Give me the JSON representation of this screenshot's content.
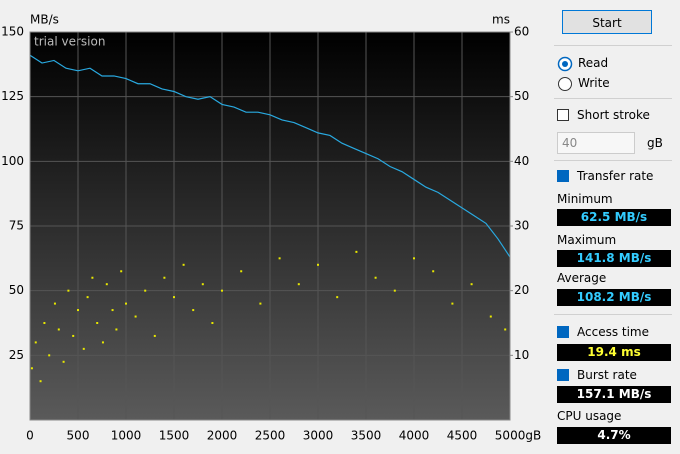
{
  "chart_data": {
    "type": "line",
    "y_unit": "MB/s",
    "y2_unit": "ms",
    "watermark": "trial version",
    "xlim": [
      0,
      5000
    ],
    "xticks": [
      0,
      500,
      1000,
      1500,
      2000,
      2500,
      3000,
      3500,
      4000,
      4500,
      {
        "value": 5000,
        "label": "5000gB"
      }
    ],
    "ylim": [
      0,
      150
    ],
    "yticks": [
      25,
      50,
      75,
      100,
      125,
      150
    ],
    "y2lim": [
      0,
      60
    ],
    "y2ticks": [
      10,
      20,
      30,
      40,
      50,
      60
    ],
    "grid": true,
    "series": [
      {
        "type": "line",
        "color": "#29a9e0",
        "x": [
          0,
          125,
          250,
          375,
          500,
          625,
          750,
          875,
          1000,
          1125,
          1250,
          1375,
          1500,
          1625,
          1750,
          1875,
          2000,
          2125,
          2250,
          2375,
          2500,
          2625,
          2750,
          2875,
          3000,
          3125,
          3250,
          3375,
          3500,
          3625,
          3750,
          3875,
          4000,
          4125,
          4250,
          4375,
          4500,
          4625,
          4750,
          4875,
          5000
        ],
        "values": [
          141,
          138,
          139,
          136,
          135,
          136,
          133,
          133,
          132,
          130,
          130,
          128,
          127,
          125,
          124,
          125,
          122,
          121,
          119,
          119,
          118,
          116,
          115,
          113,
          111,
          110,
          107,
          105,
          103,
          101,
          98,
          96,
          93,
          90,
          88,
          85,
          82,
          79,
          76,
          70,
          63
        ]
      },
      {
        "type": "scatter",
        "axis": "y2",
        "color": "#e8e800",
        "x": [
          20,
          60,
          110,
          150,
          200,
          260,
          300,
          350,
          400,
          450,
          500,
          560,
          600,
          650,
          700,
          760,
          800,
          860,
          900,
          950,
          1000,
          1100,
          1200,
          1300,
          1400,
          1500,
          1600,
          1700,
          1800,
          1900,
          2000,
          2200,
          2400,
          2600,
          2800,
          3000,
          3200,
          3400,
          3600,
          3800,
          4000,
          4200,
          4400,
          4600,
          4800,
          4950
        ],
        "values": [
          8,
          12,
          6,
          15,
          10,
          18,
          14,
          9,
          20,
          13,
          17,
          11,
          19,
          22,
          15,
          12,
          21,
          17,
          14,
          23,
          18,
          16,
          20,
          13,
          22,
          19,
          24,
          17,
          21,
          15,
          20,
          23,
          18,
          25,
          21,
          24,
          19,
          26,
          22,
          20,
          25,
          23,
          18,
          21,
          16,
          14
        ]
      }
    ]
  },
  "panel": {
    "start": "Start",
    "read": "Read",
    "write": "Write",
    "short_stroke": "Short stroke",
    "stroke_value": "40",
    "stroke_unit": "gB",
    "transfer_rate": "Transfer rate",
    "minimum_label": "Minimum",
    "minimum": "62.5 MB/s",
    "maximum_label": "Maximum",
    "maximum": "141.8 MB/s",
    "average_label": "Average",
    "average": "108.2 MB/s",
    "access_time": "Access time",
    "access_value": "19.4 ms",
    "burst_rate": "Burst rate",
    "burst_value": "157.1 MB/s",
    "cpu_usage": "CPU usage",
    "cpu_value": "4.7%"
  }
}
